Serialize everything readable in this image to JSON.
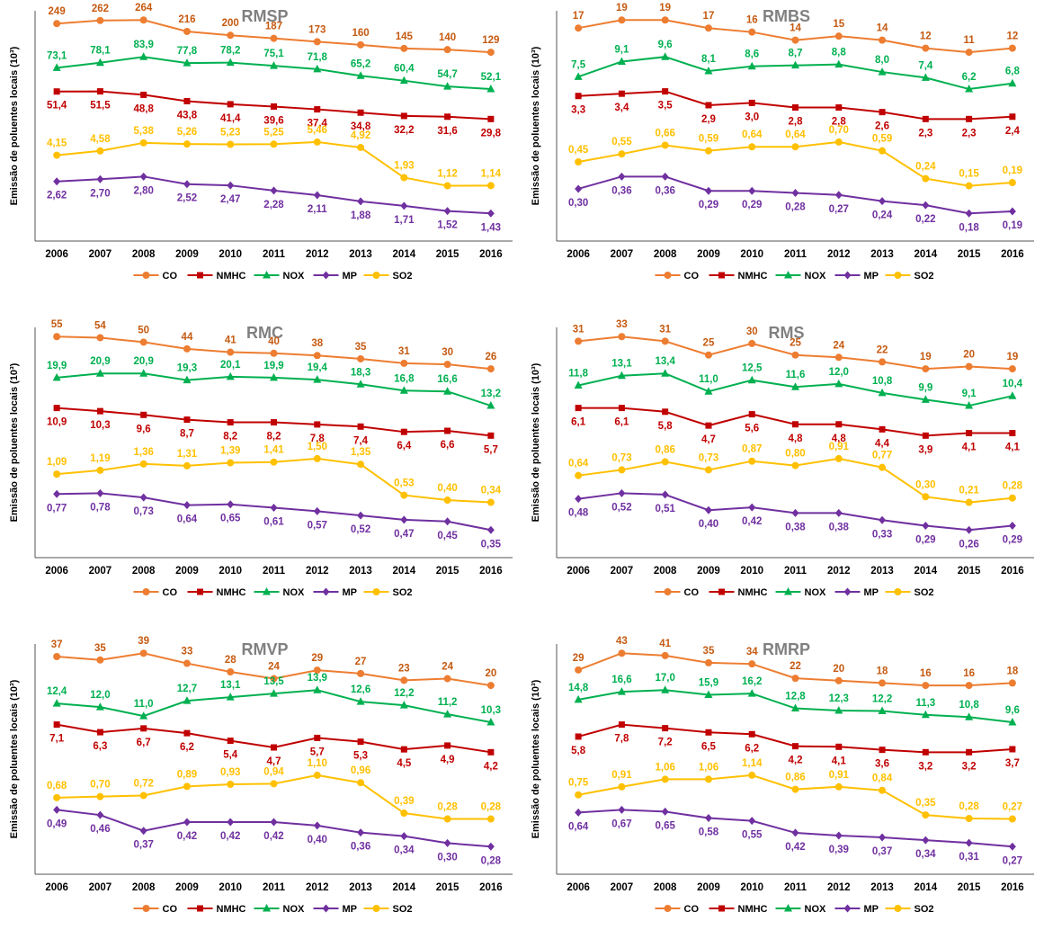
{
  "x": [
    "2006",
    "2007",
    "2008",
    "2009",
    "2010",
    "2011",
    "2012",
    "2013",
    "2014",
    "2015",
    "2016"
  ],
  "ylabel": "Emissão de poluentes locais (10³)",
  "legend": [
    "CO",
    "NMHC",
    "NOX",
    "MP",
    "SO2"
  ],
  "colors": {
    "CO": "#ED7D31",
    "NMHC": "#C00000",
    "NOX": "#00B050",
    "MP": "#7030A0",
    "SO2": "#FFC000"
  },
  "label_colors": {
    "CO": "#C55A11",
    "NMHC": "#C00000",
    "NOX": "#00B050",
    "MP": "#7030A0",
    "SO2": "#FFC000"
  },
  "chart_data": [
    {
      "type": "line",
      "title": "RMSP",
      "series": [
        {
          "name": "CO",
          "values": [
            249,
            262,
            264,
            216,
            200,
            187,
            173,
            160,
            145,
            140,
            129
          ],
          "labels": [
            "249",
            "262",
            "264",
            "216",
            "200",
            "187",
            "173",
            "160",
            "145",
            "140",
            "129"
          ]
        },
        {
          "name": "NOX",
          "values": [
            73.1,
            78.1,
            83.9,
            77.8,
            78.2,
            75.1,
            71.8,
            65.2,
            60.4,
            54.7,
            52.1
          ],
          "labels": [
            "73,1",
            "78,1",
            "83,9",
            "77,8",
            "78,2",
            "75,1",
            "71,8",
            "65,2",
            "60,4",
            "54,7",
            "52,1"
          ]
        },
        {
          "name": "NMHC",
          "values": [
            51.4,
            51.5,
            48.8,
            43.8,
            41.4,
            39.6,
            37.4,
            34.8,
            32.2,
            31.6,
            29.8
          ],
          "labels": [
            "51,4",
            "51,5",
            "48,8",
            "43,8",
            "41,4",
            "39,6",
            "37,4",
            "34,8",
            "32,2",
            "31,6",
            "29,8"
          ]
        },
        {
          "name": "SO2",
          "values": [
            4.15,
            4.58,
            5.38,
            5.26,
            5.23,
            5.25,
            5.46,
            4.92,
            1.93,
            1.12,
            1.14
          ],
          "labels": [
            "4,15",
            "4,58",
            "5,38",
            "5,26",
            "5,23",
            "5,25",
            "5,46",
            "4,92",
            "1,93",
            "1,12",
            "1,14"
          ]
        },
        {
          "name": "MP",
          "values": [
            2.62,
            2.7,
            2.8,
            2.52,
            2.47,
            2.28,
            2.11,
            1.88,
            1.71,
            1.52,
            1.43
          ],
          "labels": [
            "2,62",
            "2,70",
            "2,80",
            "2,52",
            "2,47",
            "2,28",
            "2,11",
            "1,88",
            "1,71",
            "1,52",
            "1,43"
          ]
        }
      ]
    },
    {
      "type": "line",
      "title": "RMBS",
      "series": [
        {
          "name": "CO",
          "values": [
            17,
            19,
            19,
            17,
            16,
            14,
            15,
            14,
            12,
            11,
            12
          ],
          "labels": [
            "17",
            "19",
            "19",
            "17",
            "16",
            "14",
            "15",
            "14",
            "12",
            "11",
            "12"
          ]
        },
        {
          "name": "NOX",
          "values": [
            7.5,
            9.1,
            9.6,
            8.1,
            8.6,
            8.7,
            8.8,
            8.0,
            7.4,
            6.2,
            6.8
          ],
          "labels": [
            "7,5",
            "9,1",
            "9,6",
            "8,1",
            "8,6",
            "8,7",
            "8,8",
            "8,0",
            "7,4",
            "6,2",
            "6,8"
          ]
        },
        {
          "name": "NMHC",
          "values": [
            3.3,
            3.4,
            3.5,
            2.9,
            3.0,
            2.8,
            2.8,
            2.6,
            2.3,
            2.3,
            2.4
          ],
          "labels": [
            "3,3",
            "3,4",
            "3,5",
            "2,9",
            "3,0",
            "2,8",
            "2,8",
            "2,6",
            "2,3",
            "2,3",
            "2,4"
          ]
        },
        {
          "name": "SO2",
          "values": [
            0.45,
            0.55,
            0.66,
            0.59,
            0.64,
            0.64,
            0.7,
            0.59,
            0.24,
            0.15,
            0.19
          ],
          "labels": [
            "0,45",
            "0,55",
            "0,66",
            "0,59",
            "0,64",
            "0,64",
            "0,70",
            "0,59",
            "0,24",
            "0,15",
            "0,19"
          ]
        },
        {
          "name": "MP",
          "values": [
            0.3,
            0.36,
            0.36,
            0.29,
            0.29,
            0.28,
            0.27,
            0.24,
            0.22,
            0.18,
            0.19
          ],
          "labels": [
            "0,30",
            "0,36",
            "0,36",
            "0,29",
            "0,29",
            "0,28",
            "0,27",
            "0,24",
            "0,22",
            "0,18",
            "0,19"
          ]
        }
      ]
    },
    {
      "type": "line",
      "title": "RMC",
      "series": [
        {
          "name": "CO",
          "values": [
            55,
            54,
            50,
            44,
            41,
            40,
            38,
            35,
            31,
            30,
            26
          ],
          "labels": [
            "55",
            "54",
            "50",
            "44",
            "41",
            "40",
            "38",
            "35",
            "31",
            "30",
            "26"
          ]
        },
        {
          "name": "NOX",
          "values": [
            19.9,
            20.9,
            20.9,
            19.3,
            20.1,
            19.9,
            19.4,
            18.3,
            16.8,
            16.6,
            13.2
          ],
          "labels": [
            "19,9",
            "20,9",
            "20,9",
            "19,3",
            "20,1",
            "19,9",
            "19,4",
            "18,3",
            "16,8",
            "16,6",
            "13,2"
          ]
        },
        {
          "name": "NMHC",
          "values": [
            10.9,
            10.3,
            9.6,
            8.7,
            8.2,
            8.2,
            7.8,
            7.4,
            6.4,
            6.6,
            5.7
          ],
          "labels": [
            "10,9",
            "10,3",
            "9,6",
            "8,7",
            "8,2",
            "8,2",
            "7,8",
            "7,4",
            "6,4",
            "6,6",
            "5,7"
          ]
        },
        {
          "name": "SO2",
          "values": [
            1.09,
            1.19,
            1.36,
            1.31,
            1.39,
            1.41,
            1.5,
            1.35,
            0.53,
            0.4,
            0.34
          ],
          "labels": [
            "1,09",
            "1,19",
            "1,36",
            "1,31",
            "1,39",
            "1,41",
            "1,50",
            "1,35",
            "0,53",
            "0,40",
            "0,34"
          ]
        },
        {
          "name": "MP",
          "values": [
            0.77,
            0.78,
            0.73,
            0.64,
            0.65,
            0.61,
            0.57,
            0.52,
            0.47,
            0.45,
            0.35
          ],
          "labels": [
            "0,77",
            "0,78",
            "0,73",
            "0,64",
            "0,65",
            "0,61",
            "0,57",
            "0,52",
            "0,47",
            "0,45",
            "0,35"
          ]
        }
      ]
    },
    {
      "type": "line",
      "title": "RMS",
      "series": [
        {
          "name": "CO",
          "values": [
            31,
            33,
            31,
            25,
            30,
            25,
            24,
            22,
            19,
            20,
            19
          ],
          "labels": [
            "31",
            "33",
            "31",
            "25",
            "30",
            "25",
            "24",
            "22",
            "19",
            "20",
            "19"
          ]
        },
        {
          "name": "NOX",
          "values": [
            11.8,
            13.1,
            13.4,
            11.0,
            12.5,
            11.6,
            12.0,
            10.8,
            9.9,
            9.1,
            10.4
          ],
          "labels": [
            "11,8",
            "13,1",
            "13,4",
            "11,0",
            "12,5",
            "11,6",
            "12,0",
            "10,8",
            "9,9",
            "9,1",
            "10,4"
          ]
        },
        {
          "name": "NMHC",
          "values": [
            6.1,
            6.1,
            5.8,
            4.7,
            5.6,
            4.8,
            4.8,
            4.4,
            3.9,
            4.1,
            4.1
          ],
          "labels": [
            "6,1",
            "6,1",
            "5,8",
            "4,7",
            "5,6",
            "4,8",
            "4,8",
            "4,4",
            "3,9",
            "4,1",
            "4,1"
          ]
        },
        {
          "name": "SO2",
          "values": [
            0.64,
            0.73,
            0.86,
            0.73,
            0.87,
            0.8,
            0.91,
            0.77,
            0.3,
            0.21,
            0.28
          ],
          "labels": [
            "0,64",
            "0,73",
            "0,86",
            "0,73",
            "0,87",
            "0,80",
            "0,91",
            "0,77",
            "0,30",
            "0,21",
            "0,28"
          ]
        },
        {
          "name": "MP",
          "values": [
            0.48,
            0.52,
            0.51,
            0.4,
            0.42,
            0.38,
            0.38,
            0.33,
            0.29,
            0.26,
            0.29
          ],
          "labels": [
            "0,48",
            "0,52",
            "0,51",
            "0,40",
            "0,42",
            "0,38",
            "0,38",
            "0,33",
            "0,29",
            "0,26",
            "0,29"
          ]
        }
      ]
    },
    {
      "type": "line",
      "title": "RMVP",
      "series": [
        {
          "name": "CO",
          "values": [
            37,
            35,
            39,
            33,
            28,
            24,
            29,
            27,
            23,
            24,
            20
          ],
          "labels": [
            "37",
            "35",
            "39",
            "33",
            "28",
            "24",
            "29",
            "27",
            "23",
            "24",
            "20"
          ]
        },
        {
          "name": "NOX",
          "values": [
            12.4,
            12.0,
            11.0,
            12.7,
            13.1,
            13.5,
            13.9,
            12.6,
            12.2,
            11.2,
            10.3
          ],
          "labels": [
            "12,4",
            "12,0",
            "11,0",
            "12,7",
            "13,1",
            "13,5",
            "13,9",
            "12,6",
            "12,2",
            "11,2",
            "10,3"
          ]
        },
        {
          "name": "NMHC",
          "values": [
            7.1,
            6.3,
            6.7,
            6.2,
            5.4,
            4.7,
            5.7,
            5.3,
            4.5,
            4.9,
            4.2
          ],
          "labels": [
            "7,1",
            "6,3",
            "6,7",
            "6,2",
            "5,4",
            "4,7",
            "5,7",
            "5,3",
            "4,5",
            "4,9",
            "4,2"
          ]
        },
        {
          "name": "SO2",
          "values": [
            0.68,
            0.7,
            0.72,
            0.89,
            0.93,
            0.94,
            1.1,
            0.96,
            0.39,
            0.28,
            0.28
          ],
          "labels": [
            "0,68",
            "0,70",
            "0,72",
            "0,89",
            "0,93",
            "0,94",
            "1,10",
            "0,96",
            "0,39",
            "0,28",
            "0,28"
          ]
        },
        {
          "name": "MP",
          "values": [
            0.49,
            0.46,
            0.37,
            0.42,
            0.42,
            0.42,
            0.4,
            0.36,
            0.34,
            0.3,
            0.28
          ],
          "labels": [
            "0,49",
            "0,46",
            "0,37",
            "0,42",
            "0,42",
            "0,42",
            "0,40",
            "0,36",
            "0,34",
            "0,30",
            "0,28"
          ]
        }
      ]
    },
    {
      "type": "line",
      "title": "RMRP",
      "series": [
        {
          "name": "CO",
          "values": [
            29,
            43,
            41,
            35,
            34,
            22,
            20,
            18,
            16,
            16,
            18
          ],
          "labels": [
            "29",
            "43",
            "41",
            "35",
            "34",
            "22",
            "20",
            "18",
            "16",
            "16",
            "18"
          ]
        },
        {
          "name": "NOX",
          "values": [
            14.8,
            16.6,
            17.0,
            15.9,
            16.2,
            12.8,
            12.3,
            12.2,
            11.3,
            10.8,
            9.6
          ],
          "labels": [
            "14,8",
            "16,6",
            "17,0",
            "15,9",
            "16,2",
            "12,8",
            "12,3",
            "12,2",
            "11,3",
            "10,8",
            "9,6"
          ]
        },
        {
          "name": "NMHC",
          "values": [
            5.8,
            7.8,
            7.2,
            6.5,
            6.2,
            4.2,
            4.1,
            3.6,
            3.2,
            3.2,
            3.7
          ],
          "labels": [
            "5,8",
            "7,8",
            "7,2",
            "6,5",
            "6,2",
            "4,2",
            "4,1",
            "3,6",
            "3,2",
            "3,2",
            "3,7"
          ]
        },
        {
          "name": "SO2",
          "values": [
            0.75,
            0.91,
            1.06,
            1.06,
            1.14,
            0.86,
            0.91,
            0.84,
            0.35,
            0.28,
            0.27
          ],
          "labels": [
            "0,75",
            "0,91",
            "1,06",
            "1,06",
            "1,14",
            "0,86",
            "0,91",
            "0,84",
            "0,35",
            "0,28",
            "0,27"
          ]
        },
        {
          "name": "MP",
          "values": [
            0.64,
            0.67,
            0.65,
            0.58,
            0.55,
            0.42,
            0.39,
            0.37,
            0.34,
            0.31,
            0.27
          ],
          "labels": [
            "0,64",
            "0,67",
            "0,65",
            "0,58",
            "0,55",
            "0,42",
            "0,39",
            "0,37",
            "0,34",
            "0,31",
            "0,27"
          ]
        }
      ]
    }
  ]
}
